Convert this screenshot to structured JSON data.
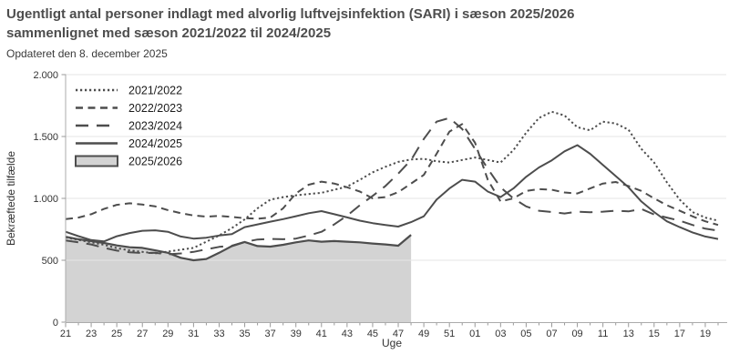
{
  "header": {
    "title_line1": "Ugentligt antal personer indlagt med alvorlig luftvejsinfektion (SARI) i sæson 2025/2026",
    "title_line2": "sammenlignet med sæson 2021/2022 til 2024/2025",
    "updated": "Opdateret den 8. december 2025"
  },
  "colors": {
    "line": "#4d4d4d",
    "area_fill": "#d3d3d3",
    "axis": "#ababab",
    "tick": "#999999",
    "grid": "#e6e6e6",
    "tick_text": "#333333",
    "legend_text": "#1b1b1b"
  },
  "chart_data": {
    "type": "line+area",
    "title": "Ugentligt antal personer indlagt med alvorlig luftvejsinfektion (SARI) i sæson 2025/2026 sammenlignet med sæson 2021/2022 til 2024/2025",
    "subtitle": "Opdateret den 8. december 2025",
    "xlabel": "Uge",
    "ylabel": "Bekræftede tilfælde",
    "ylim": [
      0,
      2000
    ],
    "y_ticks": [
      0,
      500,
      1000,
      1500,
      2000
    ],
    "y_ticklabels": [
      "0",
      "500",
      "1.000",
      "1.500",
      "2.000"
    ],
    "grid": "horizontal",
    "legend_position": "top-left",
    "weeks": [
      "21",
      "22",
      "23",
      "24",
      "25",
      "26",
      "27",
      "28",
      "29",
      "30",
      "31",
      "32",
      "33",
      "34",
      "35",
      "36",
      "37",
      "38",
      "39",
      "40",
      "41",
      "42",
      "43",
      "44",
      "45",
      "46",
      "47",
      "48",
      "49",
      "50",
      "51",
      "52",
      "01",
      "02",
      "03",
      "04",
      "05",
      "06",
      "07",
      "08",
      "09",
      "10",
      "11",
      "12",
      "13",
      "14",
      "15",
      "16",
      "17",
      "18",
      "19",
      "20"
    ],
    "x_ticklabels": [
      "21",
      "23",
      "25",
      "27",
      "29",
      "31",
      "33",
      "35",
      "37",
      "39",
      "41",
      "43",
      "45",
      "47",
      "49",
      "51",
      "01",
      "03",
      "05",
      "07",
      "09",
      "11",
      "13",
      "15",
      "17",
      "19"
    ],
    "series": [
      {
        "name": "2021/2022",
        "style": "dotted",
        "values": [
          685,
          665,
          645,
          625,
          598,
          580,
          568,
          556,
          570,
          585,
          600,
          650,
          700,
          760,
          830,
          920,
          990,
          1010,
          1025,
          1035,
          1045,
          1070,
          1095,
          1150,
          1210,
          1255,
          1295,
          1315,
          1320,
          1300,
          1290,
          1310,
          1330,
          1310,
          1290,
          1390,
          1530,
          1650,
          1700,
          1670,
          1575,
          1550,
          1620,
          1605,
          1555,
          1400,
          1290,
          1130,
          990,
          890,
          845,
          820
        ]
      },
      {
        "name": "2022/2023",
        "style": "dashed",
        "values": [
          832,
          845,
          872,
          915,
          948,
          960,
          950,
          935,
          905,
          880,
          862,
          853,
          858,
          850,
          840,
          836,
          845,
          920,
          1040,
          1110,
          1135,
          1120,
          1090,
          1055,
          1000,
          1010,
          1050,
          1120,
          1190,
          1360,
          1540,
          1600,
          1450,
          1150,
          975,
          1000,
          1060,
          1075,
          1070,
          1048,
          1040,
          1080,
          1120,
          1132,
          1100,
          1060,
          1000,
          945,
          900,
          855,
          815,
          785
        ]
      },
      {
        "name": "2023/2024",
        "style": "longdash",
        "values": [
          660,
          645,
          628,
          600,
          578,
          565,
          558,
          560,
          548,
          555,
          568,
          588,
          608,
          618,
          648,
          668,
          672,
          670,
          675,
          700,
          730,
          790,
          860,
          945,
          1020,
          1100,
          1200,
          1310,
          1480,
          1620,
          1650,
          1560,
          1400,
          1240,
          1090,
          1000,
          935,
          900,
          890,
          878,
          893,
          888,
          893,
          900,
          895,
          915,
          870,
          845,
          820,
          785,
          755,
          740
        ]
      },
      {
        "name": "2024/2025",
        "style": "solid",
        "values": [
          730,
          695,
          663,
          652,
          694,
          720,
          738,
          742,
          730,
          692,
          675,
          682,
          700,
          712,
          768,
          790,
          812,
          832,
          856,
          880,
          897,
          872,
          846,
          820,
          800,
          785,
          772,
          808,
          855,
          990,
          1080,
          1150,
          1135,
          1055,
          1010,
          1080,
          1174,
          1250,
          1307,
          1380,
          1430,
          1360,
          1270,
          1180,
          1090,
          975,
          890,
          815,
          768,
          725,
          692,
          672
        ]
      },
      {
        "name": "2025/2026",
        "style": "area",
        "values": [
          690,
          670,
          655,
          640,
          620,
          605,
          600,
          580,
          560,
          520,
          500,
          510,
          560,
          615,
          648,
          615,
          610,
          625,
          645,
          660,
          650,
          655,
          650,
          645,
          635,
          628,
          618,
          705
        ]
      }
    ]
  }
}
